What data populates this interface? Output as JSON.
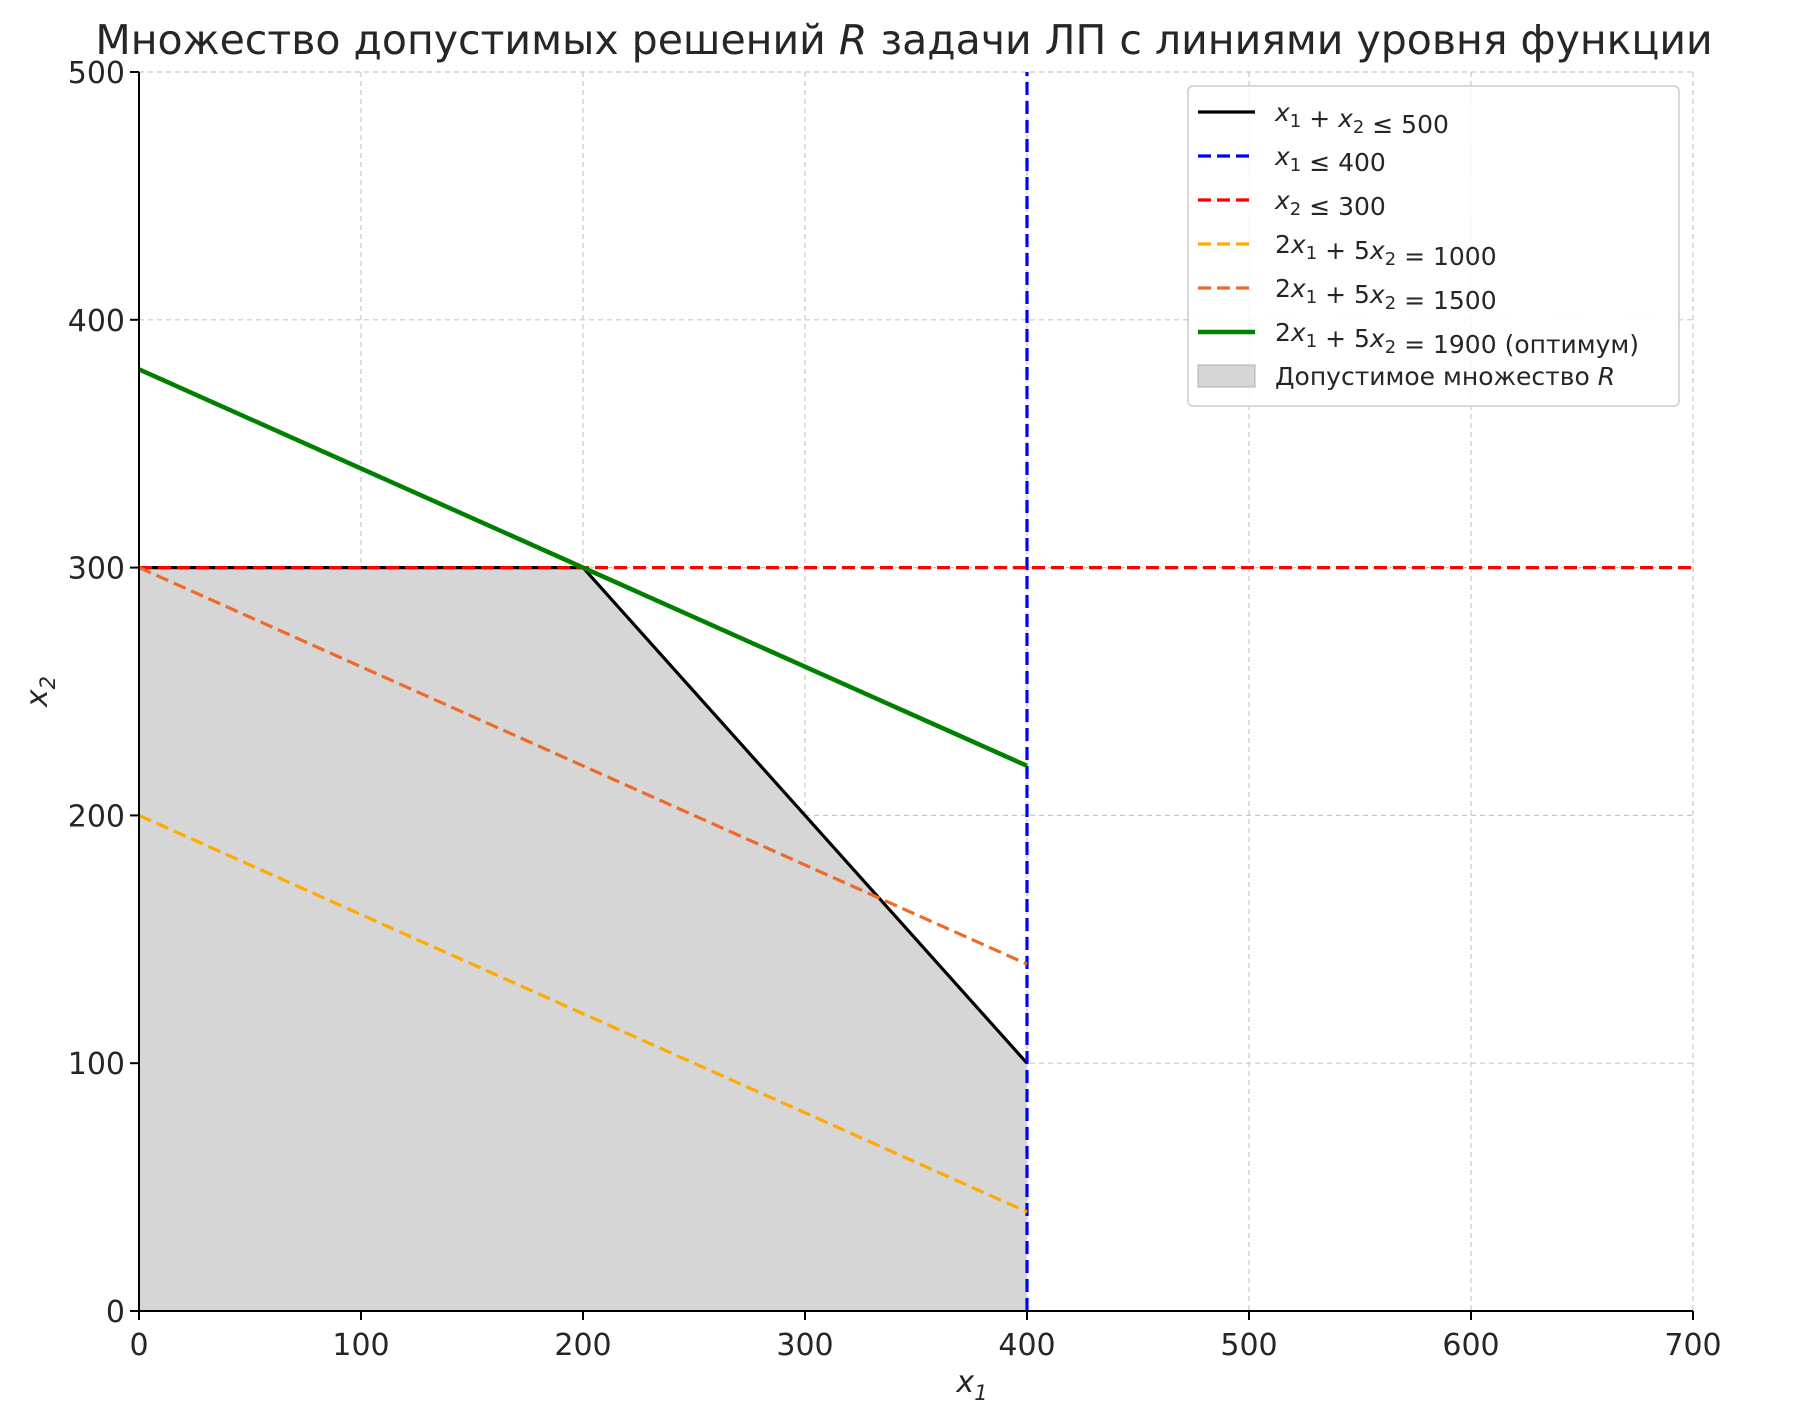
{
  "chart_data": {
    "type": "line",
    "title": "Множество допустимых решений R задачи ЛП с линиями уровня функции",
    "title_parts": [
      {
        "text": "Множество допустимых решений ",
        "italic": false
      },
      {
        "text": "R",
        "italic": true
      },
      {
        "text": " задачи ЛП с линиями уровня функции",
        "italic": false
      }
    ],
    "xlabel": {
      "main": "x",
      "sub": "1"
    },
    "ylabel": {
      "main": "x",
      "sub": "2"
    },
    "xlim": [
      0,
      700
    ],
    "ylim": [
      0,
      500
    ],
    "xticks": [
      0,
      100,
      200,
      300,
      400,
      500,
      600,
      700
    ],
    "yticks": [
      0,
      100,
      200,
      300,
      400,
      500
    ],
    "grid": true,
    "legend_position": "upper right",
    "feasible_region": {
      "name": "Допустимое множество R",
      "color": "#d6d6d6",
      "points": [
        [
          0,
          0
        ],
        [
          0,
          300
        ],
        [
          200,
          300
        ],
        [
          400,
          100
        ],
        [
          400,
          0
        ]
      ]
    },
    "series": [
      {
        "name": "x1 + x2 ≤ 500",
        "legend_parts": [
          [
            "x",
            "it"
          ],
          [
            "1",
            "sub"
          ],
          [
            " + ",
            "n"
          ],
          [
            "x",
            "it"
          ],
          [
            "2",
            "sub"
          ],
          [
            " ≤ 500",
            "n"
          ]
        ],
        "color": "#000000",
        "style": "solid",
        "width": 3.2,
        "points": [
          [
            0,
            300
          ],
          [
            200,
            300
          ],
          [
            400,
            100
          ]
        ]
      },
      {
        "name": "x1 ≤ 400",
        "legend_parts": [
          [
            "x",
            "it"
          ],
          [
            "1",
            "sub"
          ],
          [
            " ≤ 400",
            "n"
          ]
        ],
        "color": "#0000ff",
        "style": "dashed",
        "width": 3.2,
        "points": [
          [
            400,
            0
          ],
          [
            400,
            500
          ]
        ]
      },
      {
        "name": "x2 ≤ 300",
        "legend_parts": [
          [
            "x",
            "it"
          ],
          [
            "2",
            "sub"
          ],
          [
            " ≤ 300",
            "n"
          ]
        ],
        "color": "#ff0000",
        "style": "dashed",
        "width": 3.2,
        "points": [
          [
            0,
            300
          ],
          [
            700,
            300
          ]
        ]
      },
      {
        "name": "2x1 + 5x2 = 1000",
        "legend_parts": [
          [
            "2",
            "n"
          ],
          [
            "x",
            "it"
          ],
          [
            "1",
            "sub"
          ],
          [
            " + 5",
            "n"
          ],
          [
            "x",
            "it"
          ],
          [
            "2",
            "sub"
          ],
          [
            " = 1000",
            "n"
          ]
        ],
        "color": "#ffaa00",
        "style": "dashed",
        "width": 3.2,
        "points": [
          [
            0,
            200
          ],
          [
            400,
            40
          ]
        ]
      },
      {
        "name": "2x1 + 5x2 = 1500",
        "legend_parts": [
          [
            "2",
            "n"
          ],
          [
            "x",
            "it"
          ],
          [
            "1",
            "sub"
          ],
          [
            " + 5",
            "n"
          ],
          [
            "x",
            "it"
          ],
          [
            "2",
            "sub"
          ],
          [
            " = 1500",
            "n"
          ]
        ],
        "color": "#ee6a2a",
        "style": "dashed",
        "width": 3.2,
        "points": [
          [
            0,
            300
          ],
          [
            400,
            140
          ]
        ]
      },
      {
        "name": "2x1 + 5x2 = 1900 (оптимум)",
        "legend_parts": [
          [
            "2",
            "n"
          ],
          [
            "x",
            "it"
          ],
          [
            "1",
            "sub"
          ],
          [
            " + 5",
            "n"
          ],
          [
            "x",
            "it"
          ],
          [
            "2",
            "sub"
          ],
          [
            " = 1900 (оптимум)",
            "n"
          ]
        ],
        "color": "#008000",
        "style": "solid",
        "width": 4.5,
        "points": [
          [
            0,
            380
          ],
          [
            400,
            220
          ]
        ]
      }
    ],
    "region_legend_parts": [
      [
        "Допустимое множество ",
        "n"
      ],
      [
        "R",
        "it"
      ]
    ]
  }
}
